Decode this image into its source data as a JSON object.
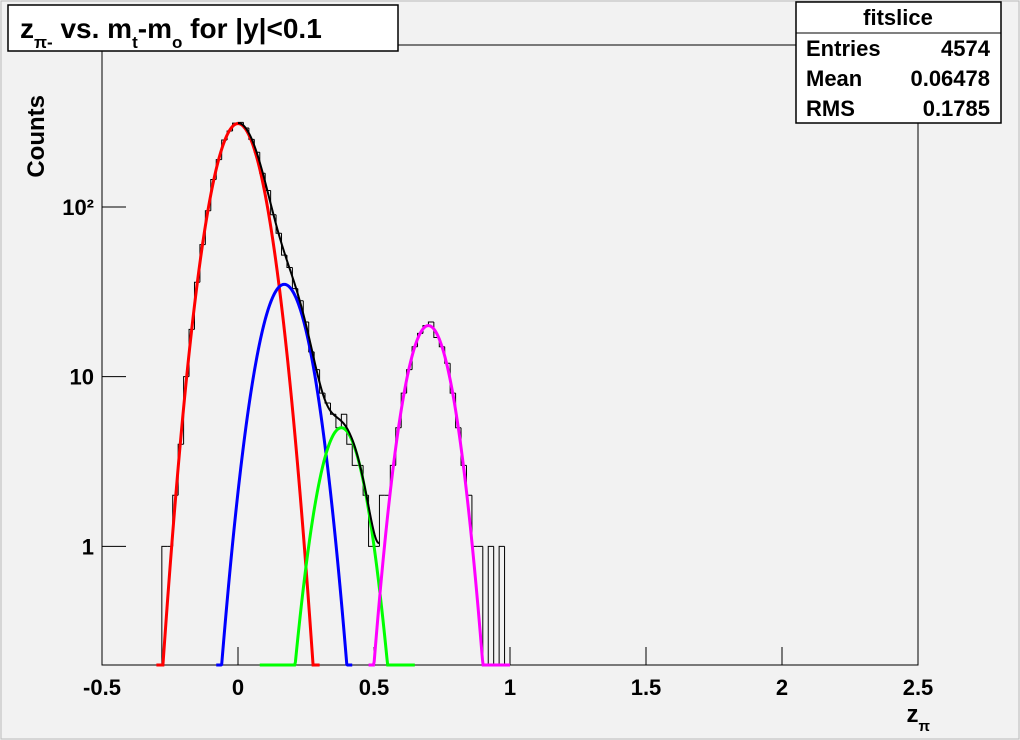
{
  "chart_data": {
    "type": "histogram",
    "title_parts": [
      "z",
      "π-",
      " vs. m",
      "t",
      "-m",
      "o",
      " for |y|<0.1"
    ],
    "xlabel_parts": [
      "z",
      "π"
    ],
    "ylabel": "Counts",
    "log_y": true,
    "color": "#000000",
    "xlim": [
      -0.5,
      2.5
    ],
    "xticks": [
      -0.5,
      0,
      0.5,
      1,
      1.5,
      2,
      2.5
    ],
    "ylim": [
      0.2,
      900
    ],
    "yticks": [
      1,
      10,
      {
        "value": 100,
        "label": "10²"
      }
    ],
    "bins": [
      -0.3,
      -0.28,
      -0.26,
      -0.24,
      -0.22,
      -0.2,
      -0.18,
      -0.16,
      -0.14,
      -0.12,
      -0.1,
      -0.08,
      -0.06,
      -0.04,
      -0.02,
      0,
      0.02,
      0.04,
      0.06,
      0.08,
      0.1,
      0.12,
      0.14,
      0.16,
      0.18,
      0.2,
      0.22,
      0.24,
      0.26,
      0.28,
      0.3,
      0.32,
      0.34,
      0.36,
      0.38,
      0.4,
      0.42,
      0.44,
      0.46,
      0.48,
      0.5,
      0.52,
      0.54,
      0.56,
      0.58,
      0.6,
      0.62,
      0.64,
      0.66,
      0.68,
      0.7,
      0.72,
      0.74,
      0.76,
      0.78,
      0.8,
      0.82,
      0.84,
      0.86,
      0.88,
      0.9,
      0.92,
      0.94,
      0.96,
      0.98,
      1.0
    ],
    "counts": [
      0,
      1,
      1,
      2,
      4,
      10,
      19,
      36,
      60,
      95,
      145,
      190,
      248,
      280,
      312,
      315,
      292,
      250,
      210,
      158,
      125,
      90,
      70,
      52,
      44,
      33,
      28,
      21,
      14,
      11,
      8,
      7,
      6,
      5,
      6,
      4,
      3,
      3,
      2,
      1,
      1,
      2,
      2,
      3,
      5,
      8,
      11,
      15,
      18,
      20,
      21,
      17,
      15,
      12,
      8,
      5,
      3,
      2,
      1,
      1,
      0,
      1,
      0,
      1,
      0
    ],
    "fits": [
      {
        "color": "#ff0000",
        "constant": 310,
        "mean": 0,
        "sigma": 0.072,
        "range": [
          -0.3,
          0.3
        ]
      },
      {
        "color": "#0000ff",
        "constant": 35,
        "mean": 0.17,
        "sigma": 0.0716,
        "range": [
          -0.08,
          0.42
        ]
      },
      {
        "color": "#00ff00",
        "constant": 5,
        "mean": 0.38,
        "sigma": 0.067,
        "range": [
          0.08,
          0.65
        ]
      },
      {
        "color": "#ff00ff",
        "constant": 20,
        "mean": 0.7,
        "sigma": 0.066,
        "range": [
          0.48,
          1.0
        ]
      }
    ],
    "total_fit": {
      "color": "#000000",
      "range": [
        0.0,
        0.52
      ]
    },
    "stats": {
      "title": "fitslice",
      "rows": [
        [
          "Entries",
          4574
        ],
        [
          "Mean",
          0.06478
        ],
        [
          "RMS",
          0.1785
        ]
      ]
    }
  }
}
